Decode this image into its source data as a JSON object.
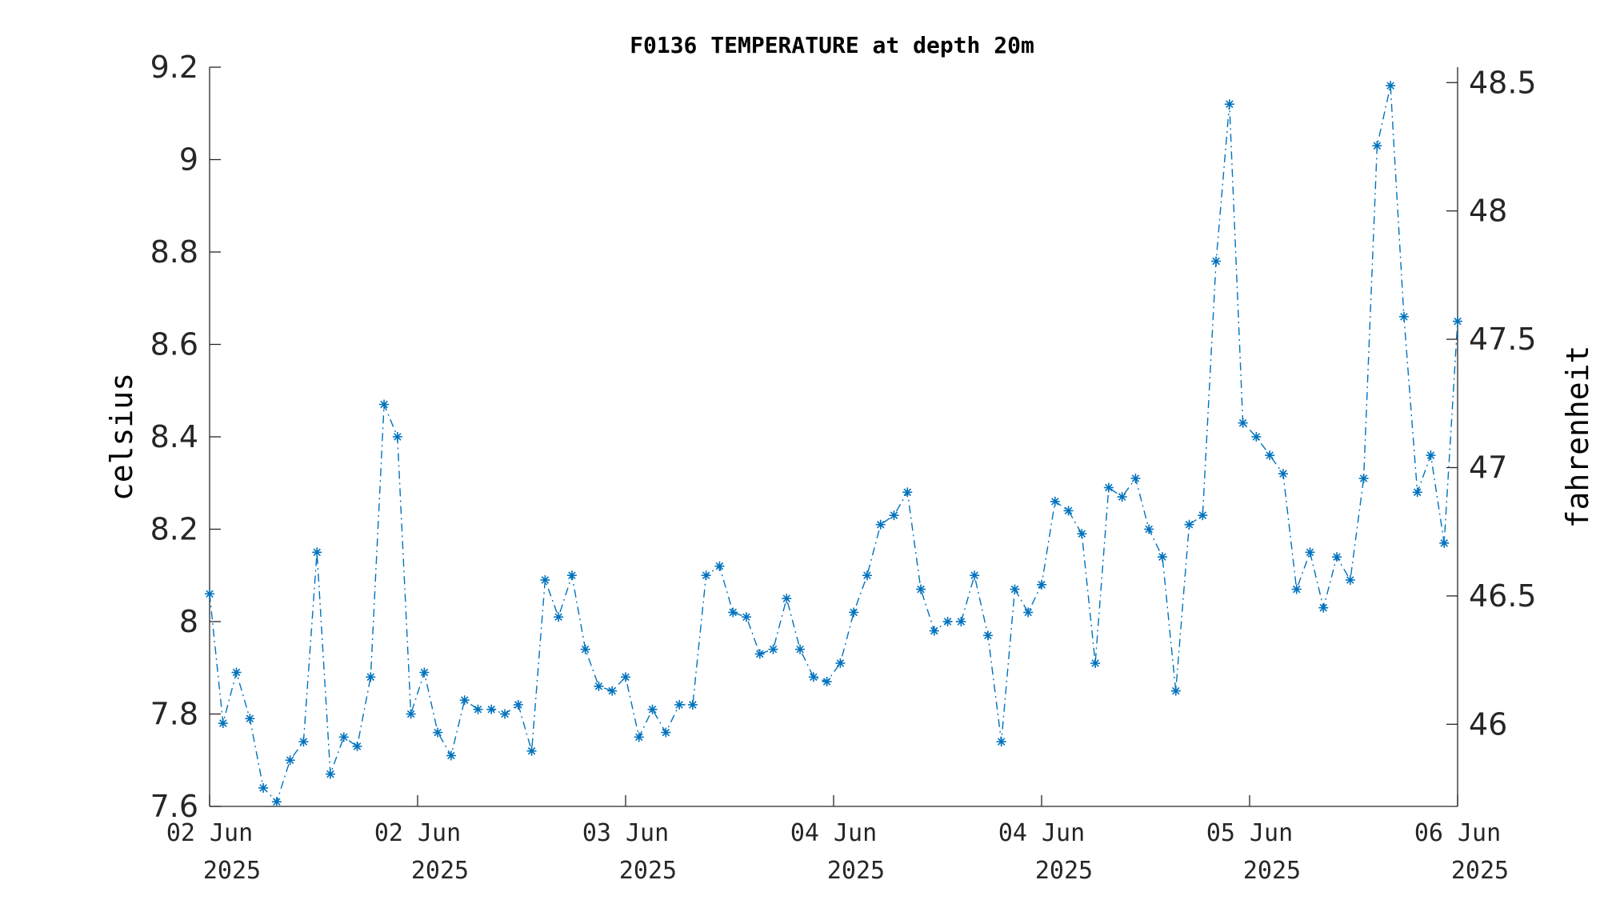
{
  "chart_data": {
    "type": "line",
    "title": "F0136 TEMPERATURE at depth 20m",
    "ylabel": "celsius",
    "y2label": "fahrenheit",
    "xlabel": "",
    "ylim": [
      7.6,
      9.2
    ],
    "y2lim": [
      45.68,
      48.56
    ],
    "yticks": [
      "7.6",
      "7.8",
      "8",
      "8.2",
      "8.4",
      "8.6",
      "8.8",
      "9",
      "9.2"
    ],
    "y2ticks": [
      "46",
      "46.5",
      "47",
      "47.5",
      "48",
      "48.5"
    ],
    "xticks": [
      {
        "line1": "02 Jun",
        "line2": "2025"
      },
      {
        "line1": "02 Jun",
        "line2": "2025"
      },
      {
        "line1": "03 Jun",
        "line2": "2025"
      },
      {
        "line1": "04 Jun",
        "line2": "2025"
      },
      {
        "line1": "04 Jun",
        "line2": "2025"
      },
      {
        "line1": "05 Jun",
        "line2": "2025"
      },
      {
        "line1": "06 Jun",
        "line2": "2025"
      }
    ],
    "line_style": "dash-dot",
    "marker": "asterisk",
    "color": "#0072BD",
    "grid": false,
    "series": [
      {
        "values": [
          8.06,
          7.78,
          7.89,
          7.79,
          7.64,
          7.61,
          7.7,
          7.74,
          8.15,
          7.67,
          7.75,
          7.73,
          7.88,
          8.47,
          8.4,
          7.8,
          7.89,
          7.76,
          7.71,
          7.83,
          7.81,
          7.81,
          7.8,
          7.82,
          7.72,
          8.09,
          8.01,
          8.1,
          7.94,
          7.86,
          7.85,
          7.88,
          7.75,
          7.81,
          7.76,
          7.82,
          7.82,
          8.1,
          8.12,
          8.02,
          8.01,
          7.93,
          7.94,
          8.05,
          7.94,
          7.88,
          7.87,
          7.91,
          8.02,
          8.1,
          8.21,
          8.23,
          8.28,
          8.07,
          7.98,
          8.0,
          8.0,
          8.1,
          7.97,
          7.74,
          8.07,
          8.02,
          8.08,
          8.26,
          8.24,
          8.19,
          7.91,
          8.29,
          8.27,
          8.31,
          8.2,
          8.14,
          7.85,
          8.21,
          8.23,
          8.78,
          9.12,
          8.43,
          8.4,
          8.36,
          8.32,
          8.07,
          8.15,
          8.03,
          8.14,
          8.09,
          8.31,
          9.03,
          9.16,
          8.66,
          8.28,
          8.36,
          8.17,
          8.65
        ]
      }
    ]
  }
}
